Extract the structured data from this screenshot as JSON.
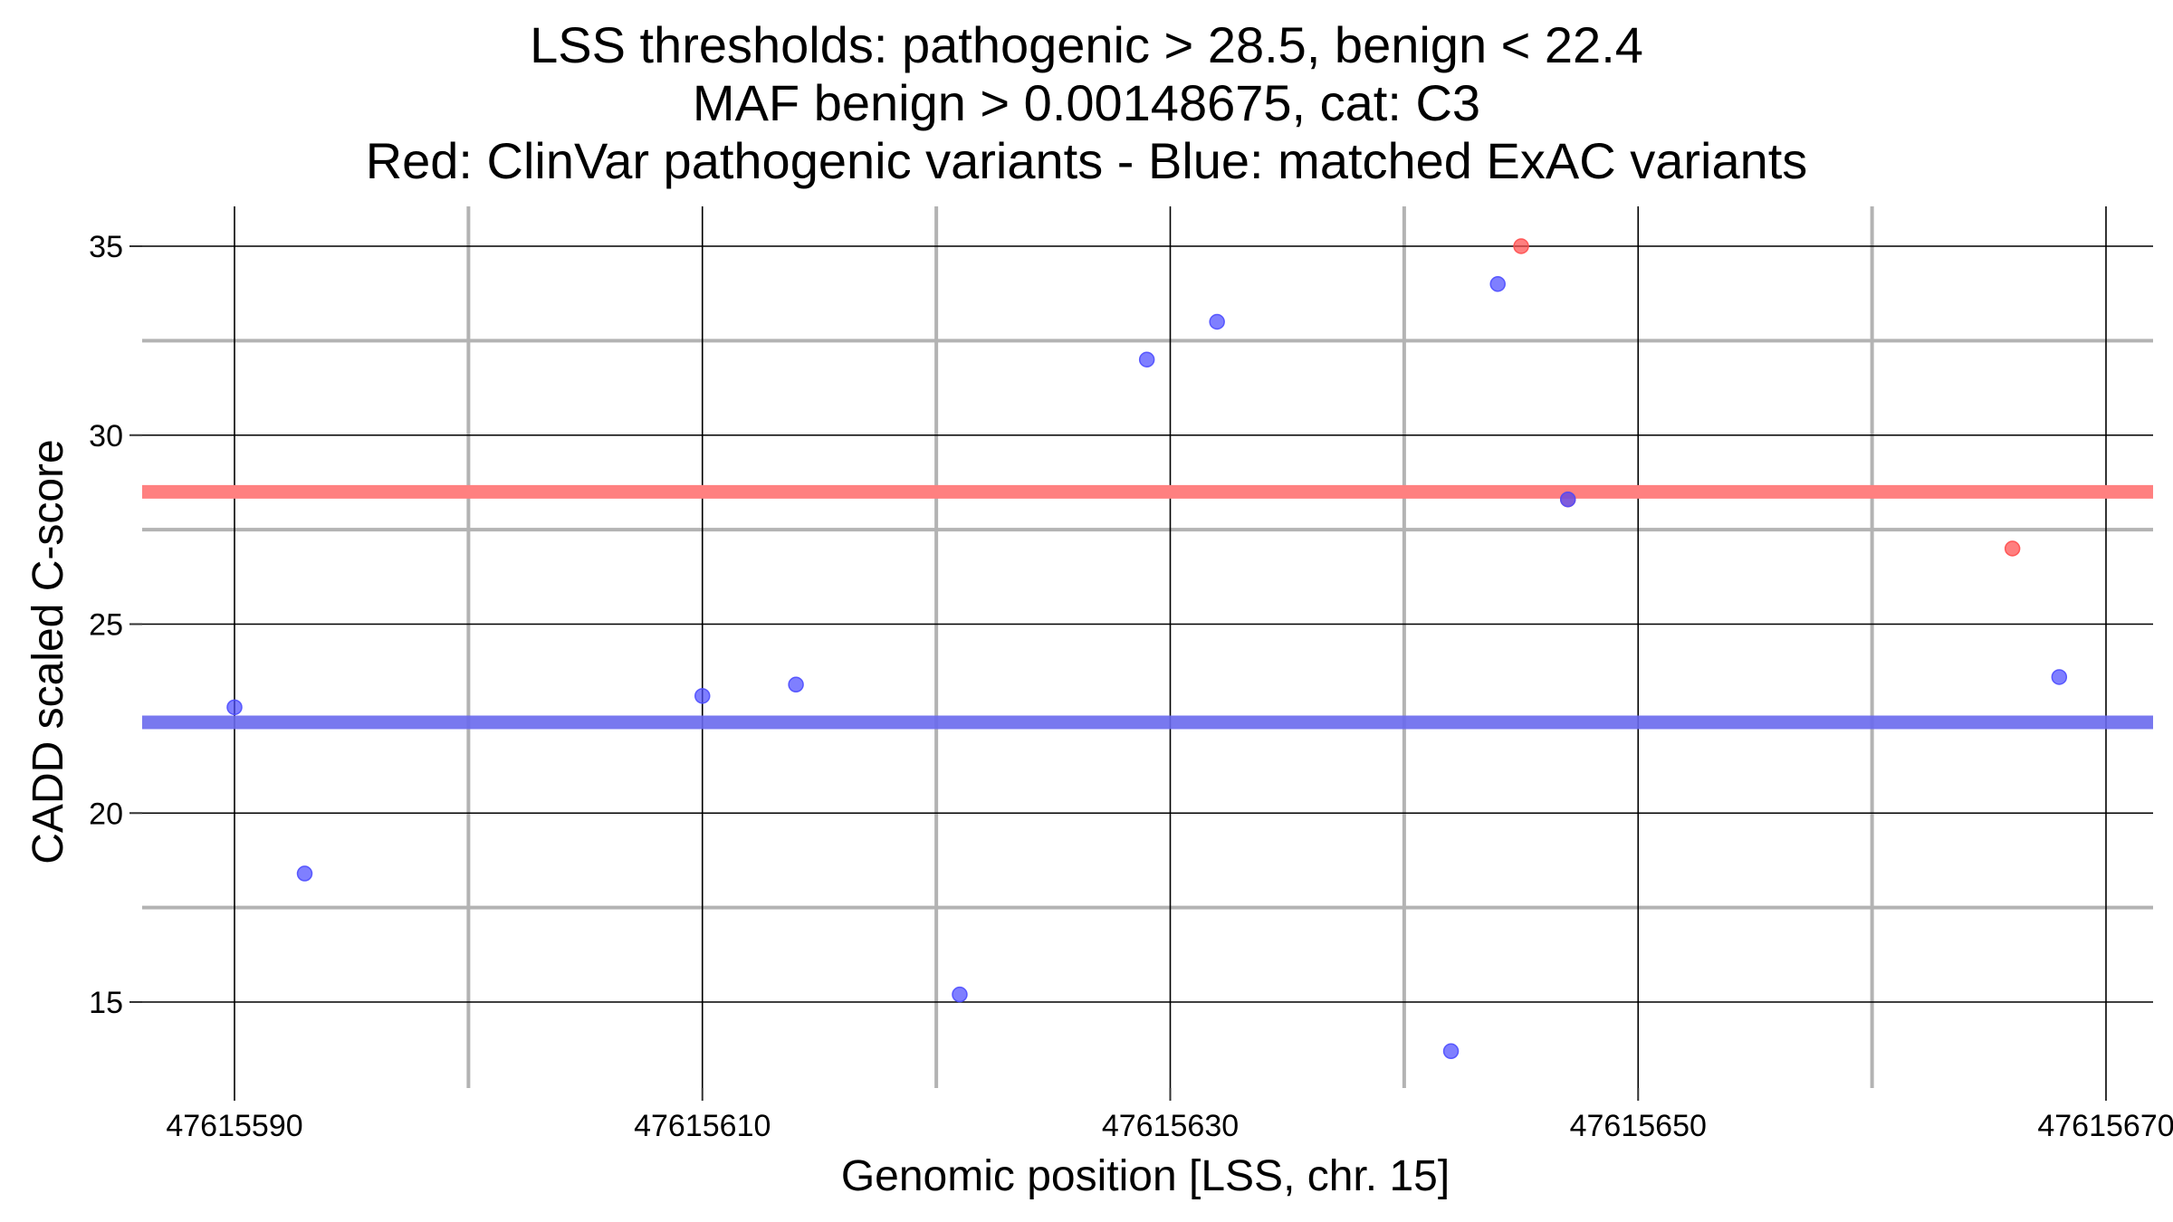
{
  "chart_data": {
    "type": "scatter",
    "title_lines": [
      "LSS thresholds: pathogenic > 28.5, benign < 22.4",
      "MAF benign > 0.00148675, cat: C3",
      "Red: ClinVar pathogenic variants - Blue: matched ExAC variants"
    ],
    "xlabel": "Genomic position [LSS, chr. 15]",
    "ylabel": "CADD scaled C-score",
    "xlim": [
      47615586,
      47615672
    ],
    "ylim": [
      12.5,
      36.0
    ],
    "x_ticks": [
      47615590,
      47615610,
      47615630,
      47615650,
      47615670
    ],
    "x_tick_labels": [
      "47615590",
      "47615610",
      "47615630",
      "47615650",
      "47615670"
    ],
    "x_minor_ticks": [
      47615600,
      47615620,
      47615640,
      47615660
    ],
    "y_ticks": [
      15,
      20,
      25,
      30,
      35
    ],
    "y_tick_labels": [
      "15",
      "20",
      "25",
      "30",
      "35"
    ],
    "y_minor_ticks": [
      17.5,
      27.5,
      32.5
    ],
    "grid": true,
    "colors": {
      "pathogenic": "#ff4d4d",
      "benign": "#4d4dff",
      "pathogenic_line": "#ff8080",
      "benign_line": "#6a6aee",
      "major_grid": "#000000",
      "minor_grid": "#b3b3b3"
    },
    "thresholds": {
      "pathogenic": 28.5,
      "benign": 22.4
    },
    "series": [
      {
        "name": "ClinVar pathogenic variants",
        "color": "#ff4d4d",
        "points": [
          {
            "x": 47615645,
            "y": 35.0
          },
          {
            "x": 47615647,
            "y": 28.3
          },
          {
            "x": 47615666,
            "y": 27.0
          }
        ]
      },
      {
        "name": "matched ExAC variants",
        "color": "#4d4dff",
        "points": [
          {
            "x": 47615590,
            "y": 22.8
          },
          {
            "x": 47615593,
            "y": 18.4
          },
          {
            "x": 47615610,
            "y": 23.1
          },
          {
            "x": 47615614,
            "y": 23.4
          },
          {
            "x": 47615621,
            "y": 15.2
          },
          {
            "x": 47615629,
            "y": 32.0
          },
          {
            "x": 47615632,
            "y": 33.0
          },
          {
            "x": 47615642,
            "y": 13.7
          },
          {
            "x": 47615644,
            "y": 34.0
          },
          {
            "x": 47615647,
            "y": 28.3
          },
          {
            "x": 47615668,
            "y": 23.6
          }
        ]
      }
    ]
  }
}
